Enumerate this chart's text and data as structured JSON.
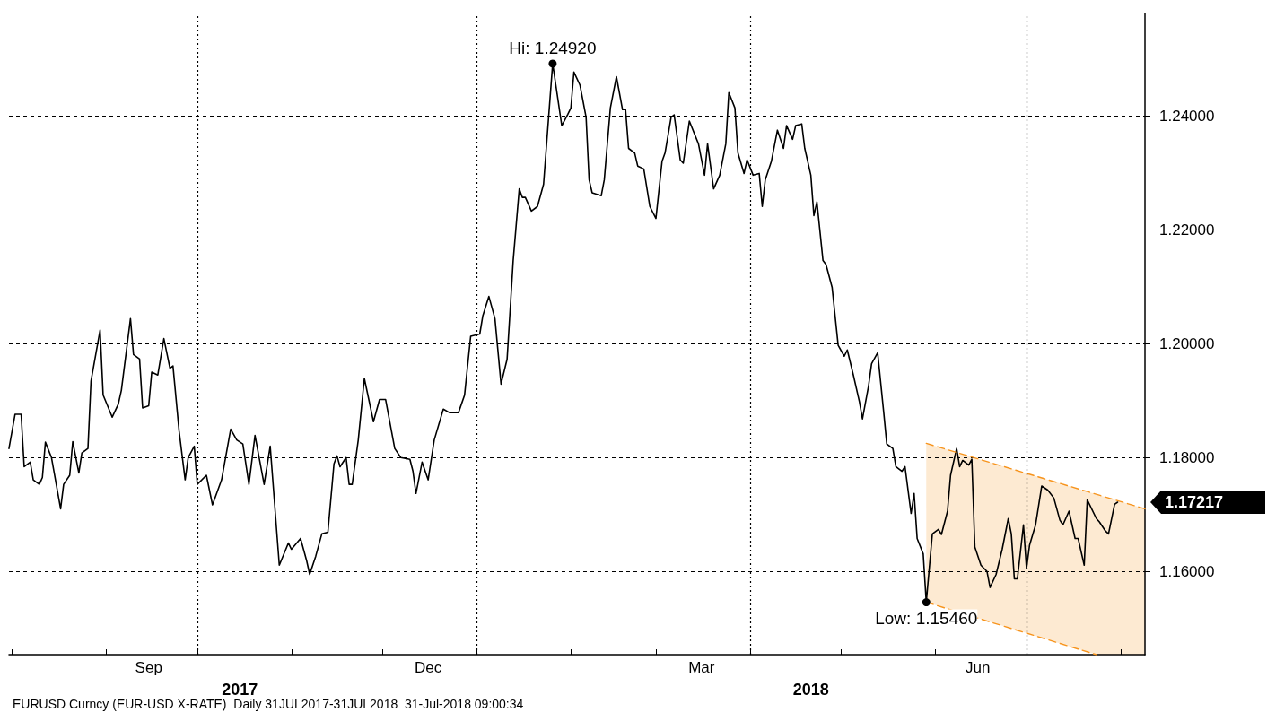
{
  "chart_data": {
    "type": "line",
    "xlim": [
      "2017-07-31",
      "2018-08-09"
    ],
    "ylim": [
      1.1454,
      1.258
    ],
    "xticks": [
      {
        "value": "2017-08-01",
        "label": null
      },
      {
        "value": "2017-09-01",
        "label": null
      },
      {
        "value": "2017-09-15",
        "label": "Sep"
      },
      {
        "value": "2017-10-01",
        "label": null
      },
      {
        "value": "2017-11-01",
        "label": null
      },
      {
        "value": "2017-12-01",
        "label": null
      },
      {
        "value": "2017-12-16",
        "label": "Dec"
      },
      {
        "value": "2018-01-01",
        "label": null
      },
      {
        "value": "2018-02-01",
        "label": null
      },
      {
        "value": "2018-03-01",
        "label": null
      },
      {
        "value": "2018-03-16",
        "label": "Mar"
      },
      {
        "value": "2018-04-01",
        "label": null
      },
      {
        "value": "2018-05-01",
        "label": null
      },
      {
        "value": "2018-06-01",
        "label": null
      },
      {
        "value": "2018-06-15",
        "label": "Jun"
      },
      {
        "value": "2018-07-01",
        "label": null
      },
      {
        "value": "2018-08-01",
        "label": null
      }
    ],
    "yticks": [
      {
        "value": 1.16,
        "label": "1.16000"
      },
      {
        "value": 1.18,
        "label": "1.18000"
      },
      {
        "value": 1.2,
        "label": "1.20000"
      },
      {
        "value": 1.22,
        "label": "1.22000"
      },
      {
        "value": 1.24,
        "label": "1.24000"
      }
    ],
    "grid": "y",
    "x2lim": [
      "2017-07-31",
      "2018-08-09"
    ],
    "x2ticks": [
      {
        "value": "2017-10-15",
        "label": "2017"
      },
      {
        "value": "2018-04-21",
        "label": "2018"
      }
    ],
    "ref_lines": [
      {
        "axis": "x",
        "value": "2017-10-01",
        "color": "#000000",
        "line_style": "dotted"
      },
      {
        "axis": "x",
        "value": "2018-01-01",
        "color": "#000000",
        "line_style": "dotted"
      },
      {
        "axis": "x",
        "value": "2018-04-01",
        "color": "#000000",
        "line_style": "dotted"
      },
      {
        "axis": "x",
        "value": "2018-07-01",
        "color": "#000000",
        "line_style": "dotted"
      }
    ],
    "annotations": [
      {
        "text": "Hi: 1.24920",
        "x": "2018-01-26",
        "y": 1.2492
      },
      {
        "text": "Low: 1.15460",
        "x": "2018-05-29",
        "y": 1.1546
      },
      {
        "text": "1.17217",
        "x": "2018-07-31",
        "y": 1.17217
      },
      "EURUSD Curncy (EUR-USD X-RATE)  Daily 31JUL2017-31JUL2018  31-Jul-2018 09:00:34"
    ],
    "series": [
      {
        "color": "#000000",
        "line_style": "solid",
        "x": [
          "2017-07-31",
          "2017-08-02",
          "2017-08-04",
          "2017-08-05",
          "2017-08-07",
          "2017-08-08",
          "2017-08-10",
          "2017-08-11",
          "2017-08-12",
          "2017-08-14",
          "2017-08-17",
          "2017-08-18",
          "2017-08-20",
          "2017-08-21",
          "2017-08-23",
          "2017-08-24",
          "2017-08-26",
          "2017-08-27",
          "2017-08-30",
          "2017-08-31",
          "2017-09-03",
          "2017-09-05",
          "2017-09-06",
          "2017-09-09",
          "2017-09-10",
          "2017-09-12",
          "2017-09-13",
          "2017-09-15",
          "2017-09-16",
          "2017-09-18",
          "2017-09-20",
          "2017-09-22",
          "2017-09-23",
          "2017-09-25",
          "2017-09-27",
          "2017-09-28",
          "2017-09-30",
          "2017-10-01",
          "2017-10-04",
          "2017-10-06",
          "2017-10-09",
          "2017-10-12",
          "2017-10-14",
          "2017-10-16",
          "2017-10-18",
          "2017-10-20",
          "2017-10-23",
          "2017-10-25",
          "2017-10-28",
          "2017-10-31",
          "2017-11-01",
          "2017-11-04",
          "2017-11-06",
          "2017-11-07",
          "2017-11-09",
          "2017-11-11",
          "2017-11-13",
          "2017-11-15",
          "2017-11-16",
          "2017-11-17",
          "2017-11-19",
          "2017-11-20",
          "2017-11-21",
          "2017-11-23",
          "2017-11-25",
          "2017-11-28",
          "2017-11-30",
          "2017-12-02",
          "2017-12-05",
          "2017-12-07",
          "2017-12-10",
          "2017-12-11",
          "2017-12-12",
          "2017-12-14",
          "2017-12-16",
          "2017-12-18",
          "2017-12-21",
          "2017-12-23",
          "2017-12-26",
          "2017-12-28",
          "2017-12-30",
          "2018-01-02",
          "2018-01-03",
          "2018-01-05",
          "2018-01-07",
          "2018-01-09",
          "2018-01-11",
          "2018-01-13",
          "2018-01-15",
          "2018-01-16",
          "2018-01-17",
          "2018-01-19",
          "2018-01-21",
          "2018-01-23",
          "2018-01-26",
          "2018-01-29",
          "2018-01-31",
          "2018-02-01",
          "2018-02-02",
          "2018-02-04",
          "2018-02-06",
          "2018-02-07",
          "2018-02-08",
          "2018-02-11",
          "2018-02-12",
          "2018-02-14",
          "2018-02-16",
          "2018-02-18",
          "2018-02-19",
          "2018-02-20",
          "2018-02-22",
          "2018-02-23",
          "2018-02-25",
          "2018-02-27",
          "2018-03-01",
          "2018-03-03",
          "2018-03-04",
          "2018-03-06",
          "2018-03-07",
          "2018-03-09",
          "2018-03-10",
          "2018-03-12",
          "2018-03-15",
          "2018-03-17",
          "2018-03-18",
          "2018-03-20",
          "2018-03-22",
          "2018-03-24",
          "2018-03-25",
          "2018-03-27",
          "2018-03-28",
          "2018-03-30",
          "2018-03-31",
          "2018-04-02",
          "2018-04-04",
          "2018-04-05",
          "2018-04-06",
          "2018-04-08",
          "2018-04-10",
          "2018-04-12",
          "2018-04-13",
          "2018-04-15",
          "2018-04-16",
          "2018-04-18",
          "2018-04-19",
          "2018-04-21",
          "2018-04-22",
          "2018-04-23",
          "2018-04-25",
          "2018-04-26",
          "2018-04-28",
          "2018-04-30",
          "2018-05-02",
          "2018-05-03",
          "2018-05-05",
          "2018-05-07",
          "2018-05-08",
          "2018-05-10",
          "2018-05-11",
          "2018-05-13",
          "2018-05-15",
          "2018-05-16",
          "2018-05-18",
          "2018-05-19",
          "2018-05-21",
          "2018-05-22",
          "2018-05-24",
          "2018-05-25",
          "2018-05-26",
          "2018-05-28",
          "2018-05-29",
          "2018-05-31",
          "2018-06-02",
          "2018-06-03",
          "2018-06-05",
          "2018-06-06",
          "2018-06-08",
          "2018-06-09",
          "2018-06-10",
          "2018-06-12",
          "2018-06-13",
          "2018-06-14",
          "2018-06-16",
          "2018-06-18",
          "2018-06-19",
          "2018-06-21",
          "2018-06-23",
          "2018-06-25",
          "2018-06-26",
          "2018-06-27",
          "2018-06-28",
          "2018-06-30",
          "2018-07-01",
          "2018-07-02",
          "2018-07-04",
          "2018-07-06",
          "2018-07-08",
          "2018-07-10",
          "2018-07-12",
          "2018-07-13",
          "2018-07-15",
          "2018-07-17",
          "2018-07-18",
          "2018-07-20",
          "2018-07-21",
          "2018-07-24",
          "2018-07-25",
          "2018-07-27",
          "2018-07-28",
          "2018-07-30",
          "2018-07-31"
        ],
        "values": [
          1.1816,
          1.1876,
          1.1876,
          1.1784,
          1.1792,
          1.1761,
          1.1753,
          1.1765,
          1.1827,
          1.18,
          1.171,
          1.1753,
          1.1769,
          1.1828,
          1.1773,
          1.1808,
          1.1816,
          1.1934,
          1.2024,
          1.191,
          1.1871,
          1.1894,
          1.1918,
          1.2044,
          1.1981,
          1.1973,
          1.1887,
          1.1891,
          1.195,
          1.1945,
          1.2009,
          1.1957,
          1.1961,
          1.1847,
          1.1761,
          1.18,
          1.182,
          1.1753,
          1.1769,
          1.1717,
          1.1761,
          1.185,
          1.1831,
          1.1824,
          1.1753,
          1.1839,
          1.1753,
          1.182,
          1.1611,
          1.165,
          1.1639,
          1.1658,
          1.1619,
          1.1595,
          1.1627,
          1.1666,
          1.1669,
          1.1789,
          1.1803,
          1.1784,
          1.18,
          1.1753,
          1.1753,
          1.1831,
          1.1939,
          1.1863,
          1.1902,
          1.1902,
          1.1816,
          1.18,
          1.1797,
          1.1776,
          1.1737,
          1.1792,
          1.1761,
          1.1831,
          1.1885,
          1.1879,
          1.1879,
          1.191,
          1.2013,
          1.2017,
          1.2049,
          1.2083,
          1.2044,
          1.1929,
          1.1973,
          1.2146,
          1.2272,
          1.2257,
          1.2257,
          1.2233,
          1.2241,
          1.228,
          1.2492,
          1.2383,
          1.2403,
          1.2414,
          1.2477,
          1.2454,
          1.2398,
          1.2288,
          1.2265,
          1.226,
          1.2288,
          1.2414,
          1.2469,
          1.2411,
          1.2411,
          1.2343,
          1.2335,
          1.2312,
          1.2307,
          1.2241,
          1.222,
          1.232,
          1.2335,
          1.2398,
          1.2402,
          1.2323,
          1.2317,
          1.2391,
          1.2351,
          1.2296,
          1.2351,
          1.2272,
          1.2296,
          1.2351,
          1.2441,
          1.2414,
          1.2335,
          1.2299,
          1.2323,
          1.2296,
          1.2299,
          1.2241,
          1.2288,
          1.232,
          1.2375,
          1.2343,
          1.2383,
          1.2359,
          1.2383,
          1.2386,
          1.2343,
          1.2296,
          1.2225,
          1.2249,
          1.2146,
          1.2139,
          1.2099,
          1.1997,
          1.1978,
          1.1989,
          1.1945,
          1.1898,
          1.1868,
          1.1926,
          1.1965,
          1.1984,
          1.1879,
          1.1824,
          1.1816,
          1.1784,
          1.1776,
          1.1784,
          1.1702,
          1.1737,
          1.1658,
          1.1631,
          1.1546,
          1.1666,
          1.1674,
          1.1665,
          1.1706,
          1.1769,
          1.1816,
          1.1784,
          1.1795,
          1.1787,
          1.1797,
          1.1643,
          1.1611,
          1.16,
          1.1572,
          1.1595,
          1.1639,
          1.1693,
          1.1666,
          1.1587,
          1.1587,
          1.1682,
          1.1605,
          1.1646,
          1.1682,
          1.175,
          1.1743,
          1.1729,
          1.169,
          1.1682,
          1.1706,
          1.1658,
          1.1658,
          1.1611,
          1.1726,
          1.1693,
          1.1687,
          1.1671,
          1.1666,
          1.1718,
          1.17217
        ]
      },
      {
        "color": "#f7941d",
        "line_style": "dashed",
        "x": [
          "2018-05-29",
          "2018-08-09"
        ],
        "values": [
          1.1825,
          1.171
        ]
      },
      {
        "color": "#f7941d",
        "line_style": "dashed",
        "x": [
          "2018-05-29",
          "2018-07-24"
        ],
        "values": [
          1.1546,
          1.1454
        ]
      }
    ]
  }
}
